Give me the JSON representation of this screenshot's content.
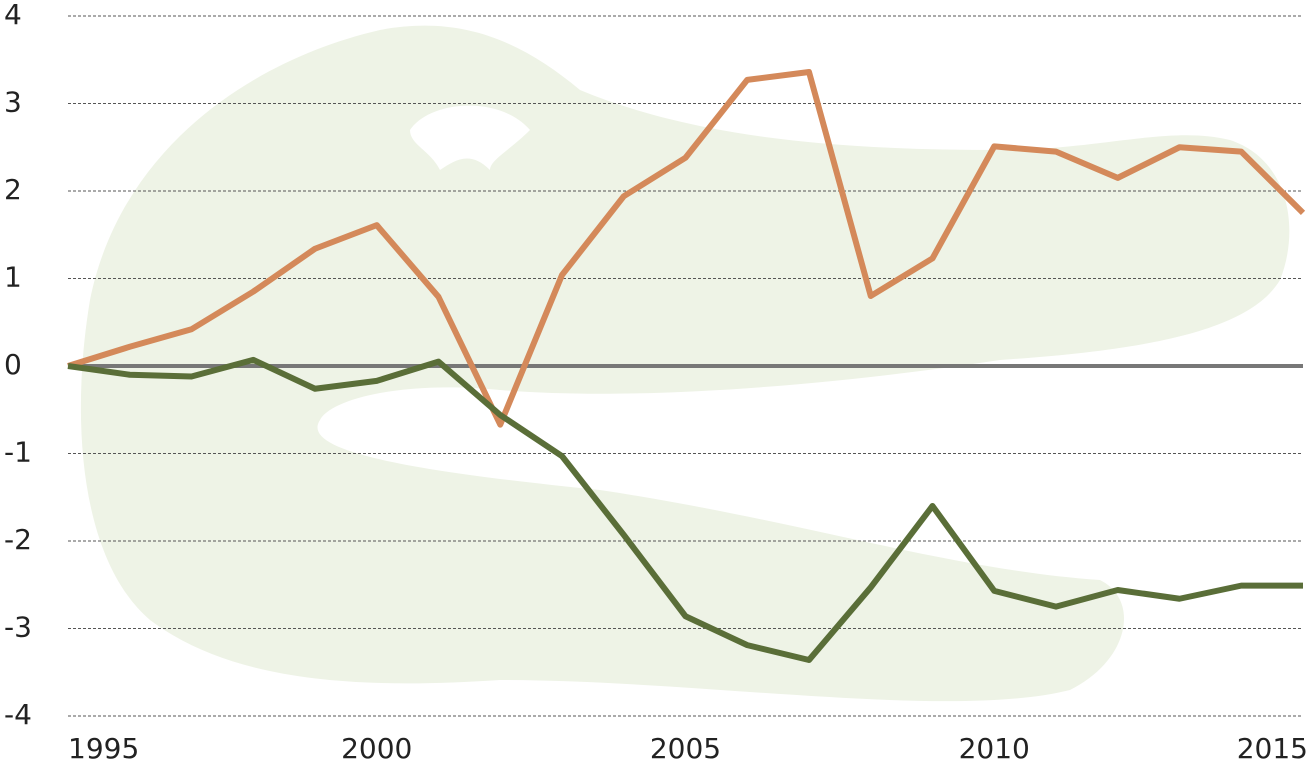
{
  "chart_data": {
    "type": "line",
    "x": [
      1995,
      1996,
      1997,
      1998,
      1999,
      2000,
      2001,
      2002,
      2003,
      2004,
      2005,
      2006,
      2007,
      2008,
      2009,
      2010,
      2011,
      2012,
      2013,
      2014,
      2015
    ],
    "series": [
      {
        "color": "#d4895a",
        "values": [
          0,
          0.22,
          0.42,
          0.85,
          1.34,
          1.61,
          0.79,
          -0.67,
          1.04,
          1.94,
          2.38,
          3.27,
          3.36,
          0.8,
          1.23,
          2.51,
          2.45,
          2.15,
          2.5,
          2.45,
          1.75
        ]
      },
      {
        "color": "#5a6e38",
        "values": [
          0,
          -0.1,
          -0.12,
          0.07,
          -0.26,
          -0.17,
          0.05,
          -0.56,
          -1.03,
          -1.93,
          -2.86,
          -3.19,
          -3.36,
          -2.53,
          -1.6,
          -2.57,
          -2.75,
          -2.56,
          -2.66,
          -2.51,
          -2.51
        ]
      }
    ],
    "xlim": [
      1995,
      2015
    ],
    "xticks": [
      1995,
      2000,
      2005,
      2010,
      2015
    ],
    "ylim": [
      -4,
      4
    ],
    "yticks": [
      -4,
      -3,
      -2,
      -1,
      0,
      1,
      2,
      3,
      4
    ],
    "grid": true
  }
}
